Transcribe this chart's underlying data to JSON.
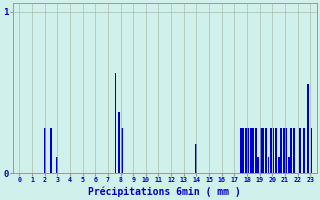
{
  "xlabel": "Précipitations 6min ( mm )",
  "background_color": "#cff0eb",
  "bar_color": "#0000cc",
  "grid_color": "#aabbaa",
  "tick_color": "#0000cc",
  "xlabel_color": "#0000cc",
  "xlim": [
    -0.5,
    23.5
  ],
  "ylim": [
    0,
    1.05
  ],
  "yticks": [
    0,
    1
  ],
  "xticks": [
    0,
    1,
    2,
    3,
    4,
    5,
    6,
    7,
    8,
    9,
    10,
    11,
    12,
    13,
    14,
    15,
    16,
    17,
    18,
    19,
    20,
    21,
    22,
    23
  ],
  "bars": [
    [
      2.0,
      0.28
    ],
    [
      2.5,
      0.28
    ],
    [
      3.0,
      0.1
    ],
    [
      7.6,
      0.62
    ],
    [
      7.85,
      0.38
    ],
    [
      8.1,
      0.28
    ],
    [
      14.0,
      0.18
    ],
    [
      17.5,
      0.28
    ],
    [
      17.7,
      0.28
    ],
    [
      17.9,
      0.28
    ],
    [
      18.1,
      0.28
    ],
    [
      18.3,
      0.28
    ],
    [
      18.5,
      0.28
    ],
    [
      18.7,
      0.28
    ],
    [
      18.9,
      0.1
    ],
    [
      19.1,
      0.28
    ],
    [
      19.3,
      0.28
    ],
    [
      19.5,
      0.28
    ],
    [
      19.7,
      0.1
    ],
    [
      19.9,
      0.28
    ],
    [
      20.1,
      0.28
    ],
    [
      20.3,
      0.28
    ],
    [
      20.5,
      0.1
    ],
    [
      20.7,
      0.28
    ],
    [
      20.9,
      0.28
    ],
    [
      21.1,
      0.28
    ],
    [
      21.3,
      0.1
    ],
    [
      21.5,
      0.28
    ],
    [
      21.7,
      0.28
    ],
    [
      22.2,
      0.28
    ],
    [
      22.5,
      0.28
    ],
    [
      22.8,
      0.55
    ],
    [
      23.1,
      0.28
    ]
  ],
  "bar_width": 0.15
}
